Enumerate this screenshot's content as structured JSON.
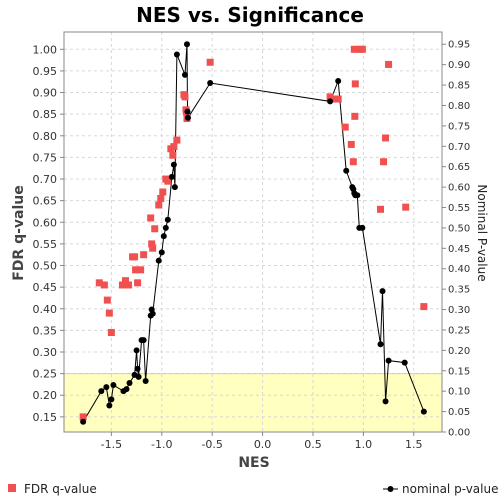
{
  "chart_data": {
    "type": "scatter",
    "title": "NES vs. Significance",
    "xlabel": "NES",
    "ylabel": "FDR q-value",
    "y2label": "Nominal P-value",
    "xlim": [
      -1.97,
      1.78
    ],
    "ylim": [
      0.115,
      1.04
    ],
    "y2lim": [
      0.0,
      0.98
    ],
    "xticks": [
      "-1.5",
      "-1.0",
      "-0.5",
      "0.0",
      "0.5",
      "1.0",
      "1.5"
    ],
    "xtick_values": [
      -1.5,
      -1.0,
      -0.5,
      0.0,
      0.5,
      1.0,
      1.5
    ],
    "yticks": [
      "0.15",
      "0.20",
      "0.25",
      "0.30",
      "0.35",
      "0.40",
      "0.45",
      "0.50",
      "0.55",
      "0.60",
      "0.65",
      "0.70",
      "0.75",
      "0.80",
      "0.85",
      "0.90",
      "0.95",
      "1.00"
    ],
    "ytick_values": [
      0.15,
      0.2,
      0.25,
      0.3,
      0.35,
      0.4,
      0.45,
      0.5,
      0.55,
      0.6,
      0.65,
      0.7,
      0.75,
      0.8,
      0.85,
      0.9,
      0.95,
      1.0
    ],
    "y2ticks": [
      "0.00",
      "0.05",
      "0.10",
      "0.15",
      "0.20",
      "0.25",
      "0.30",
      "0.35",
      "0.40",
      "0.45",
      "0.50",
      "0.55",
      "0.60",
      "0.65",
      "0.70",
      "0.75",
      "0.80",
      "0.85",
      "0.90",
      "0.95"
    ],
    "y2tick_values": [
      0.0,
      0.05,
      0.1,
      0.15,
      0.2,
      0.25,
      0.3,
      0.35,
      0.4,
      0.45,
      0.5,
      0.55,
      0.6,
      0.65,
      0.7,
      0.75,
      0.8,
      0.85,
      0.9,
      0.95
    ],
    "highlight_band": {
      "from": 0.115,
      "to": 0.25,
      "color": "#ffffc0"
    },
    "grid": true,
    "legend_position": "bottom",
    "colors": {
      "fdr": "#f05050",
      "pvalue": "#000000",
      "grid": "#d8d8d8",
      "band_edge": "#d0cc80"
    },
    "series": [
      {
        "name": "FDR q-value",
        "axis": "left",
        "marker": "square",
        "points": [
          [
            -1.78,
            0.15
          ],
          [
            -1.62,
            0.46
          ],
          [
            -1.57,
            0.455
          ],
          [
            -1.54,
            0.42
          ],
          [
            -1.52,
            0.39
          ],
          [
            -1.5,
            0.345
          ],
          [
            -1.39,
            0.455
          ],
          [
            -1.36,
            0.465
          ],
          [
            -1.33,
            0.455
          ],
          [
            -1.29,
            0.52
          ],
          [
            -1.27,
            0.52
          ],
          [
            -1.26,
            0.49
          ],
          [
            -1.24,
            0.46
          ],
          [
            -1.21,
            0.49
          ],
          [
            -1.18,
            0.525
          ],
          [
            -1.11,
            0.61
          ],
          [
            -1.1,
            0.55
          ],
          [
            -1.09,
            0.54
          ],
          [
            -1.07,
            0.585
          ],
          [
            -1.03,
            0.64
          ],
          [
            -1.01,
            0.655
          ],
          [
            -0.99,
            0.67
          ],
          [
            -0.96,
            0.7
          ],
          [
            -0.94,
            0.695
          ],
          [
            -0.91,
            0.77
          ],
          [
            -0.89,
            0.755
          ],
          [
            -0.88,
            0.775
          ],
          [
            -0.85,
            0.79
          ],
          [
            -0.78,
            0.895
          ],
          [
            -0.77,
            0.89
          ],
          [
            -0.76,
            0.86
          ],
          [
            -0.755,
            0.855
          ],
          [
            -0.75,
            0.84
          ],
          [
            -0.52,
            0.97
          ],
          [
            0.67,
            0.89
          ],
          [
            0.72,
            0.885
          ],
          [
            0.75,
            0.885
          ],
          [
            0.82,
            0.82
          ],
          [
            0.88,
            0.78
          ],
          [
            0.9,
            0.74
          ],
          [
            0.91,
            1.0
          ],
          [
            0.915,
            0.845
          ],
          [
            0.92,
            0.92
          ],
          [
            0.96,
            1.0
          ],
          [
            0.99,
            1.0
          ],
          [
            1.17,
            0.63
          ],
          [
            1.2,
            0.74
          ],
          [
            1.22,
            0.795
          ],
          [
            1.25,
            0.965
          ],
          [
            1.42,
            0.635
          ],
          [
            1.6,
            0.405
          ]
        ]
      },
      {
        "name": "nominal p-value",
        "axis": "right",
        "marker": "circle",
        "points": [
          [
            -1.78,
            0.025
          ],
          [
            -1.6,
            0.1
          ],
          [
            -1.55,
            0.11
          ],
          [
            -1.52,
            0.065
          ],
          [
            -1.5,
            0.08
          ],
          [
            -1.48,
            0.115
          ],
          [
            -1.38,
            0.1
          ],
          [
            -1.35,
            0.105
          ],
          [
            -1.32,
            0.12
          ],
          [
            -1.27,
            0.14
          ],
          [
            -1.25,
            0.2
          ],
          [
            -1.24,
            0.155
          ],
          [
            -1.23,
            0.135
          ],
          [
            -1.2,
            0.225
          ],
          [
            -1.18,
            0.225
          ],
          [
            -1.16,
            0.125
          ],
          [
            -1.11,
            0.285
          ],
          [
            -1.1,
            0.3
          ],
          [
            -1.09,
            0.29
          ],
          [
            -1.03,
            0.42
          ],
          [
            -1.0,
            0.44
          ],
          [
            -0.98,
            0.48
          ],
          [
            -0.96,
            0.5
          ],
          [
            -0.94,
            0.52
          ],
          [
            -0.9,
            0.625
          ],
          [
            -0.88,
            0.655
          ],
          [
            -0.87,
            0.6
          ],
          [
            -0.85,
            0.925
          ],
          [
            -0.77,
            0.875
          ],
          [
            -0.75,
            0.95
          ],
          [
            -0.745,
            0.785
          ],
          [
            -0.74,
            0.77
          ],
          [
            -0.52,
            0.855
          ],
          [
            0.67,
            0.81
          ],
          [
            0.75,
            0.86
          ],
          [
            0.83,
            0.64
          ],
          [
            0.89,
            0.6
          ],
          [
            0.9,
            0.595
          ],
          [
            0.91,
            0.585
          ],
          [
            0.92,
            0.58
          ],
          [
            0.94,
            0.58
          ],
          [
            0.96,
            0.5
          ],
          [
            0.99,
            0.5
          ],
          [
            1.17,
            0.215
          ],
          [
            1.19,
            0.345
          ],
          [
            1.22,
            0.075
          ],
          [
            1.25,
            0.175
          ],
          [
            1.41,
            0.17
          ],
          [
            1.6,
            0.05
          ]
        ]
      }
    ]
  }
}
